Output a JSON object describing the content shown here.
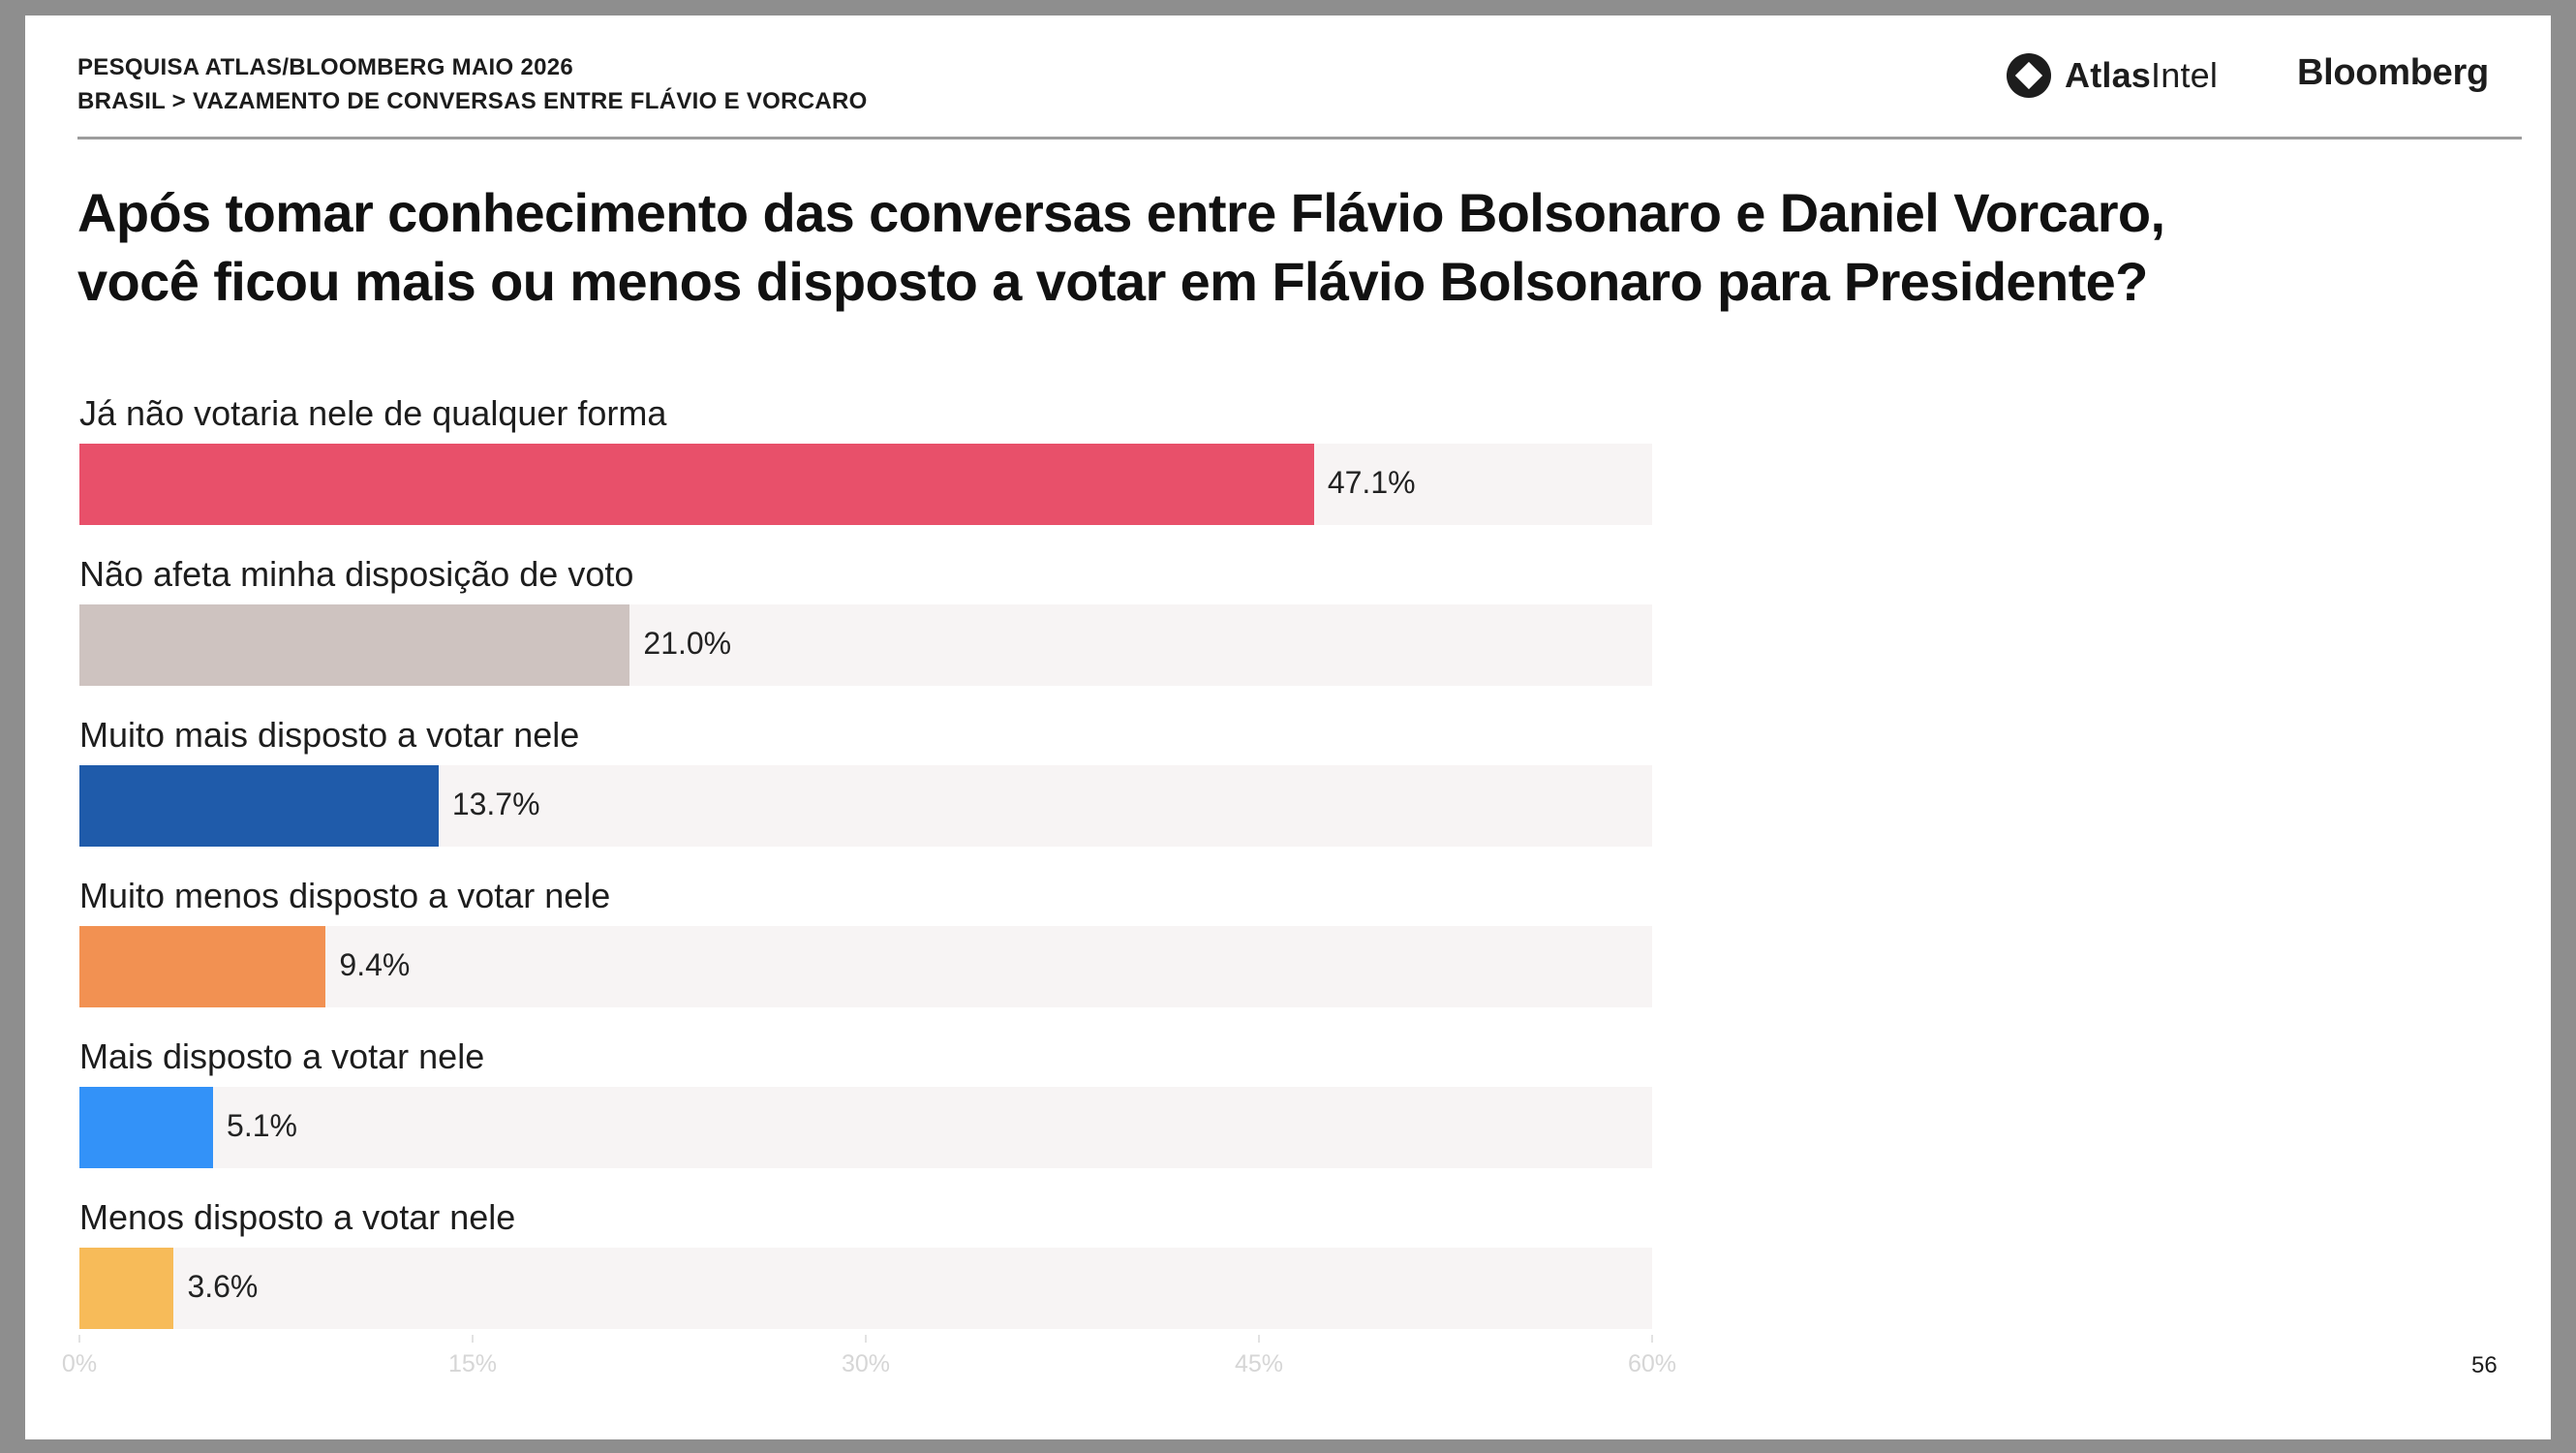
{
  "header": {
    "survey": "PESQUISA ATLAS/BLOOMBERG MAIO 2026",
    "breadcrumb": "BRASIL > VAZAMENTO DE CONVERSAS ENTRE FLÁVIO E VORCARO"
  },
  "logos": {
    "atlas_bold": "Atlas",
    "atlas_regular": "Intel",
    "bloomberg": "Bloomberg"
  },
  "title_lines": [
    "Após tomar conhecimento das conversas entre Flávio Bolsonaro e Daniel Vorcaro,",
    "você ficou mais ou menos disposto a votar em Flávio Bolsonaro para Presidente?"
  ],
  "page_number": "56",
  "chart_data": {
    "type": "bar",
    "orientation": "horizontal",
    "title": "Após tomar conhecimento das conversas entre Flávio Bolsonaro e Daniel Vorcaro, você ficou mais ou menos disposto a votar em Flávio Bolsonaro para Presidente?",
    "categories": [
      "Já não votaria nele de qualquer forma",
      "Não afeta minha disposição de voto",
      "Muito mais disposto a votar nele",
      "Muito menos disposto a votar nele",
      "Mais disposto a votar nele",
      "Menos disposto a votar nele"
    ],
    "values": [
      47.1,
      21.0,
      13.7,
      9.4,
      5.1,
      3.6
    ],
    "value_labels": [
      "47.1%",
      "21.0%",
      "13.7%",
      "9.4%",
      "5.1%",
      "3.6%"
    ],
    "colors": [
      "#e8506a",
      "#cec3c0",
      "#1f5baa",
      "#f29152",
      "#3392f8",
      "#f7bb59"
    ],
    "track_color": "#f7f4f4",
    "xlim": [
      0,
      60
    ],
    "xticks": [
      0,
      15,
      30,
      45,
      60
    ],
    "xtick_labels": [
      "0%",
      "15%",
      "30%",
      "45%",
      "60%"
    ],
    "unit": "%",
    "grid": false,
    "legend": "none"
  }
}
